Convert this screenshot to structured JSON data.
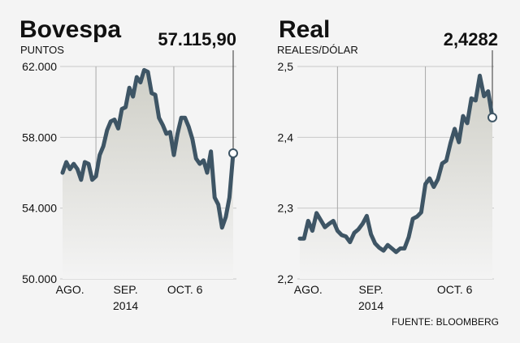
{
  "source": "FUENTE: BLOOMBERG",
  "colors": {
    "line": "#3e5565",
    "fill_top": "#cfcfc7",
    "fill_bottom": "#f4f4f4",
    "grid": "#c8c8c8",
    "background": "#f4f4f4"
  },
  "chart_data": [
    {
      "type": "area",
      "title": "Bovespa",
      "ylabel": "PUNTOS",
      "callout": "57.115,90",
      "ylim": [
        50000,
        62000
      ],
      "yticks": [
        62000,
        58000,
        54000,
        50000
      ],
      "ytick_labels": [
        "62.000",
        "58.000",
        "54.000",
        "50.000"
      ],
      "xticks": [
        {
          "index": 2,
          "label": "AGO.",
          "label2": ""
        },
        {
          "index": 17,
          "label": "SEP.",
          "label2": "2014"
        },
        {
          "index": 33,
          "label": "OCT. 6",
          "label2": ""
        }
      ],
      "vlines": [
        9,
        30
      ],
      "grid": true,
      "series": [
        {
          "values": [
            56000,
            56600,
            56200,
            56500,
            56200,
            55600,
            56600,
            56500,
            55600,
            55800,
            57000,
            57500,
            58400,
            58900,
            59000,
            58500,
            59600,
            59700,
            60800,
            60300,
            61400,
            61100,
            61800,
            61700,
            60500,
            60400,
            59100,
            58700,
            58200,
            58300,
            57000,
            58200,
            59100,
            59100,
            58600,
            57900,
            56800,
            56500,
            56700,
            56000,
            57200,
            54600,
            54200,
            52900,
            53500,
            54600,
            57100
          ]
        }
      ]
    },
    {
      "type": "area",
      "title": "Real",
      "ylabel": "REALES/DÓLAR",
      "callout": "2,4282",
      "ylim": [
        2.2,
        2.5
      ],
      "yticks": [
        2.5,
        2.4,
        2.3,
        2.2
      ],
      "ytick_labels": [
        "2,5",
        "2,4",
        "2,3",
        "2,2"
      ],
      "xticks": [
        {
          "index": 2,
          "label": "AGO.",
          "label2": ""
        },
        {
          "index": 17,
          "label": "SEP.",
          "label2": "2014"
        },
        {
          "index": 37,
          "label": "OCT. 6",
          "label2": ""
        }
      ],
      "vlines": [
        9,
        30
      ],
      "grid": true,
      "series": [
        {
          "values": [
            2.257,
            2.257,
            2.282,
            2.268,
            2.293,
            2.283,
            2.273,
            2.278,
            2.282,
            2.268,
            2.262,
            2.26,
            2.252,
            2.265,
            2.27,
            2.278,
            2.289,
            2.263,
            2.25,
            2.244,
            2.24,
            2.248,
            2.243,
            2.238,
            2.243,
            2.243,
            2.259,
            2.285,
            2.288,
            2.294,
            2.334,
            2.342,
            2.33,
            2.341,
            2.363,
            2.367,
            2.392,
            2.412,
            2.393,
            2.43,
            2.42,
            2.455,
            2.452,
            2.487,
            2.458,
            2.465,
            2.428
          ]
        }
      ]
    }
  ]
}
